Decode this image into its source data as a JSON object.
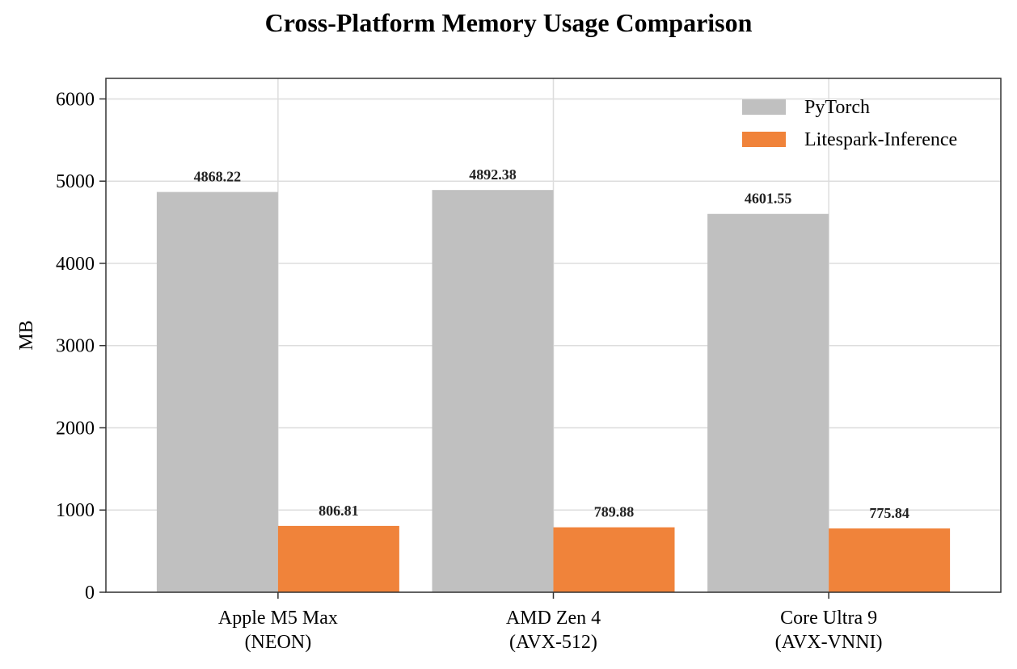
{
  "chart_data": {
    "type": "bar",
    "title": "Cross-Platform Memory Usage Comparison",
    "xlabel": "",
    "ylabel": "MB",
    "ylim": [
      0,
      6250
    ],
    "yticks": [
      0,
      1000,
      2000,
      3000,
      4000,
      5000,
      6000
    ],
    "categories": [
      [
        "Apple M5 Max",
        "(NEON)"
      ],
      [
        "AMD Zen 4",
        "(AVX-512)"
      ],
      [
        "Core Ultra 9",
        "(AVX-VNNI)"
      ]
    ],
    "series": [
      {
        "name": "PyTorch",
        "color": "#c0c0c0",
        "values": [
          4868.22,
          4892.38,
          4601.55
        ],
        "labels": [
          "4868.22",
          "4892.38",
          "4601.55"
        ]
      },
      {
        "name": "Litespark-Inference",
        "color": "#f0833a",
        "values": [
          806.81,
          789.88,
          775.84
        ],
        "labels": [
          "806.81",
          "789.88",
          "775.84"
        ]
      }
    ],
    "grid": true,
    "legend_position": "top-right"
  }
}
